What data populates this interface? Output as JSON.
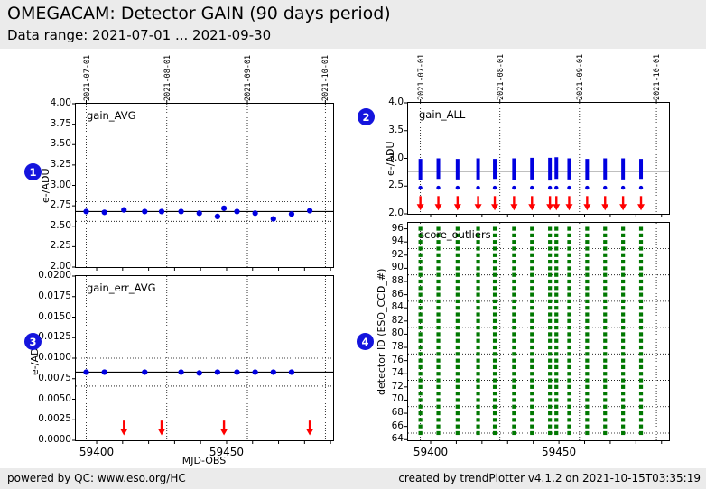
{
  "header": {
    "title": "OMEGACAM: Detector GAIN (90 days period)",
    "subtitle": "Data range: 2021-07-01 ... 2021-09-30"
  },
  "footer": {
    "left": "powered by QC: www.eso.org/HC",
    "right": "created by trendPlotter v4.1.2 on 2021-10-15T03:35:19"
  },
  "badges": [
    "1",
    "2",
    "3",
    "4"
  ],
  "colors": {
    "point_blue": "#0000e0",
    "arrow_red": "#ff0000",
    "marker_green": "#007800",
    "badge_blue": "#1414dd",
    "chrome_gray": "#ebebeb",
    "axis_black": "#000000"
  },
  "chart_data": [
    {
      "id": "gain_AVG",
      "type": "scatter",
      "title": "gain_AVG",
      "ylabel": "e-/ADU",
      "xlabel": "",
      "xlim": [
        59392,
        59491
      ],
      "ylim": [
        2.0,
        4.0
      ],
      "ytick_values": [
        4.0,
        3.75,
        3.5,
        3.25,
        3.0,
        2.75,
        2.5,
        2.25,
        2.0
      ],
      "ytick_labels": [
        "4.00",
        "3.75",
        "3.50",
        "3.25",
        "3.00",
        "2.75",
        "2.50",
        "2.25",
        "2.00"
      ],
      "xtick_values": [
        59400,
        59450
      ],
      "xtick_labels": [
        "59400",
        "59450"
      ],
      "xtick_minor": [
        59400,
        59410,
        59420,
        59430,
        59440,
        59450,
        59460,
        59470,
        59480,
        59490
      ],
      "date_lines": [
        {
          "mjd": 59396,
          "label": "2021-07-01"
        },
        {
          "mjd": 59427,
          "label": "2021-08-01"
        },
        {
          "mjd": 59458,
          "label": "2021-09-01"
        },
        {
          "mjd": 59488,
          "label": "2021-10-01"
        }
      ],
      "avg_line": 2.68,
      "dotted_hlines": [
        2.8,
        2.56
      ],
      "x": [
        59396,
        59403,
        59410.5,
        59418.5,
        59425,
        59432.5,
        59439.5,
        59446.5,
        59449,
        59454,
        59461,
        59468,
        59475,
        59482
      ],
      "y": [
        2.68,
        2.67,
        2.7,
        2.68,
        2.68,
        2.68,
        2.66,
        2.62,
        2.72,
        2.68,
        2.66,
        2.59,
        2.65,
        2.69
      ]
    },
    {
      "id": "gain_ALL",
      "type": "cluster",
      "title": "gain_ALL",
      "ylabel": "e-/ADU",
      "xlabel": "",
      "xlim": [
        59391.2,
        59492.9
      ],
      "ylim": [
        2.0,
        4.0
      ],
      "ytick_values": [
        4.0,
        3.5,
        3.0,
        2.5,
        2.0
      ],
      "ytick_labels": [
        "4.0",
        "3.5",
        "3.0",
        "2.5",
        "2.0"
      ],
      "xtick_values": [
        59400,
        59450
      ],
      "xtick_labels": [
        "59400",
        "59450"
      ],
      "xtick_minor": [
        59400,
        59410,
        59420,
        59430,
        59440,
        59450,
        59460,
        59470,
        59480,
        59490
      ],
      "date_lines": [
        {
          "mjd": 59396,
          "label": "2021-07-01"
        },
        {
          "mjd": 59427,
          "label": "2021-08-01"
        },
        {
          "mjd": 59458,
          "label": "2021-09-01"
        },
        {
          "mjd": 59488,
          "label": "2021-10-01"
        }
      ],
      "avg_line": 2.77,
      "outlier_y": 2.47,
      "clusters": [
        {
          "x": 59396,
          "ymin": 2.61,
          "ymax": 2.99
        },
        {
          "x": 59403,
          "ymin": 2.63,
          "ymax": 3.0
        },
        {
          "x": 59410.5,
          "ymin": 2.62,
          "ymax": 2.99
        },
        {
          "x": 59418.5,
          "ymin": 2.62,
          "ymax": 3.0
        },
        {
          "x": 59425,
          "ymin": 2.63,
          "ymax": 2.99
        },
        {
          "x": 59432.5,
          "ymin": 2.61,
          "ymax": 3.0
        },
        {
          "x": 59439.5,
          "ymin": 2.62,
          "ymax": 3.01
        },
        {
          "x": 59446.5,
          "ymin": 2.6,
          "ymax": 3.01
        },
        {
          "x": 59449,
          "ymin": 2.63,
          "ymax": 3.02
        },
        {
          "x": 59454,
          "ymin": 2.62,
          "ymax": 3.0
        },
        {
          "x": 59461,
          "ymin": 2.61,
          "ymax": 2.99
        },
        {
          "x": 59468,
          "ymin": 2.62,
          "ymax": 3.0
        },
        {
          "x": 59475,
          "ymin": 2.62,
          "ymax": 3.0
        },
        {
          "x": 59482,
          "ymin": 2.63,
          "ymax": 2.99
        }
      ],
      "arrows": {
        "x": [
          59396,
          59403,
          59410.5,
          59418.5,
          59425,
          59432.5,
          59439.5,
          59446.5,
          59449,
          59454,
          59461,
          59468,
          59475,
          59482
        ],
        "y_top": 2.32,
        "y_tip": 2.06
      }
    },
    {
      "id": "gain_err_AVG",
      "type": "scatter",
      "title": "gain_err_AVG",
      "ylabel": "e-/ADU",
      "xlabel": "MJD-OBS",
      "xlim": [
        59392,
        59491
      ],
      "ylim": [
        0.0,
        0.02
      ],
      "ytick_values": [
        0.02,
        0.0175,
        0.015,
        0.0125,
        0.01,
        0.0075,
        0.005,
        0.0025,
        0.0
      ],
      "ytick_labels": [
        "0.0200",
        "0.0175",
        "0.0150",
        "0.0125",
        "0.0100",
        "0.0075",
        "0.0050",
        "0.0025",
        "0.0000"
      ],
      "xtick_values": [
        59400,
        59450
      ],
      "xtick_labels": [
        "59400",
        "59450"
      ],
      "xtick_minor": [
        59400,
        59410,
        59420,
        59430,
        59440,
        59450,
        59460,
        59470,
        59480,
        59490
      ],
      "date_lines": [
        {
          "mjd": 59396,
          "label": "2021-07-01"
        },
        {
          "mjd": 59427,
          "label": "2021-08-01"
        },
        {
          "mjd": 59458,
          "label": "2021-09-01"
        },
        {
          "mjd": 59488,
          "label": "2021-10-01"
        }
      ],
      "avg_line": 0.0083,
      "dotted_hlines": [
        0.01,
        0.0066
      ],
      "x": [
        59396,
        59403,
        59418.5,
        59432.5,
        59439.5,
        59446.5,
        59454,
        59461,
        59468,
        59475
      ],
      "y": [
        0.0083,
        0.0083,
        0.0083,
        0.0083,
        0.0082,
        0.0083,
        0.0083,
        0.0083,
        0.0083,
        0.0083
      ],
      "arrows": {
        "x": [
          59410.5,
          59425,
          59449,
          59482
        ],
        "y_top": 0.0024,
        "y_tip": 0.0006
      }
    },
    {
      "id": "score_outliers",
      "type": "grid",
      "title": "score_outliers",
      "ylabel": "detector ID (ESO_CCD_#)",
      "xlabel": "",
      "xlim": [
        59391.2,
        59492.9
      ],
      "ylim": [
        63.9,
        96.9
      ],
      "ytick_values": [
        96,
        94,
        92,
        90,
        88,
        86,
        84,
        82,
        80,
        78,
        76,
        74,
        72,
        70,
        68,
        66,
        64
      ],
      "ytick_labels": [
        "96",
        "94",
        "92",
        "90",
        "88",
        "86",
        "84",
        "82",
        "80",
        "78",
        "76",
        "74",
        "72",
        "70",
        "68",
        "66",
        "64"
      ],
      "xtick_values": [
        59400,
        59450
      ],
      "xtick_labels": [
        "59400",
        "59450"
      ],
      "xtick_minor": [
        59400,
        59410,
        59420,
        59430,
        59440,
        59450,
        59460,
        59470,
        59480,
        59490
      ],
      "date_lines": [
        {
          "mjd": 59396,
          "label": "2021-07-01"
        },
        {
          "mjd": 59427,
          "label": "2021-08-01"
        },
        {
          "mjd": 59458,
          "label": "2021-09-01"
        },
        {
          "mjd": 59488,
          "label": "2021-10-01"
        }
      ],
      "dotted_hlines": [
        65,
        69,
        73,
        77,
        81,
        85,
        89,
        93
      ],
      "dates": [
        59396,
        59403,
        59410.5,
        59418.5,
        59425,
        59432.5,
        59439.5,
        59446.5,
        59449,
        59454,
        59461,
        59468,
        59475,
        59482
      ],
      "detector_min": 65,
      "detector_max": 96
    }
  ]
}
